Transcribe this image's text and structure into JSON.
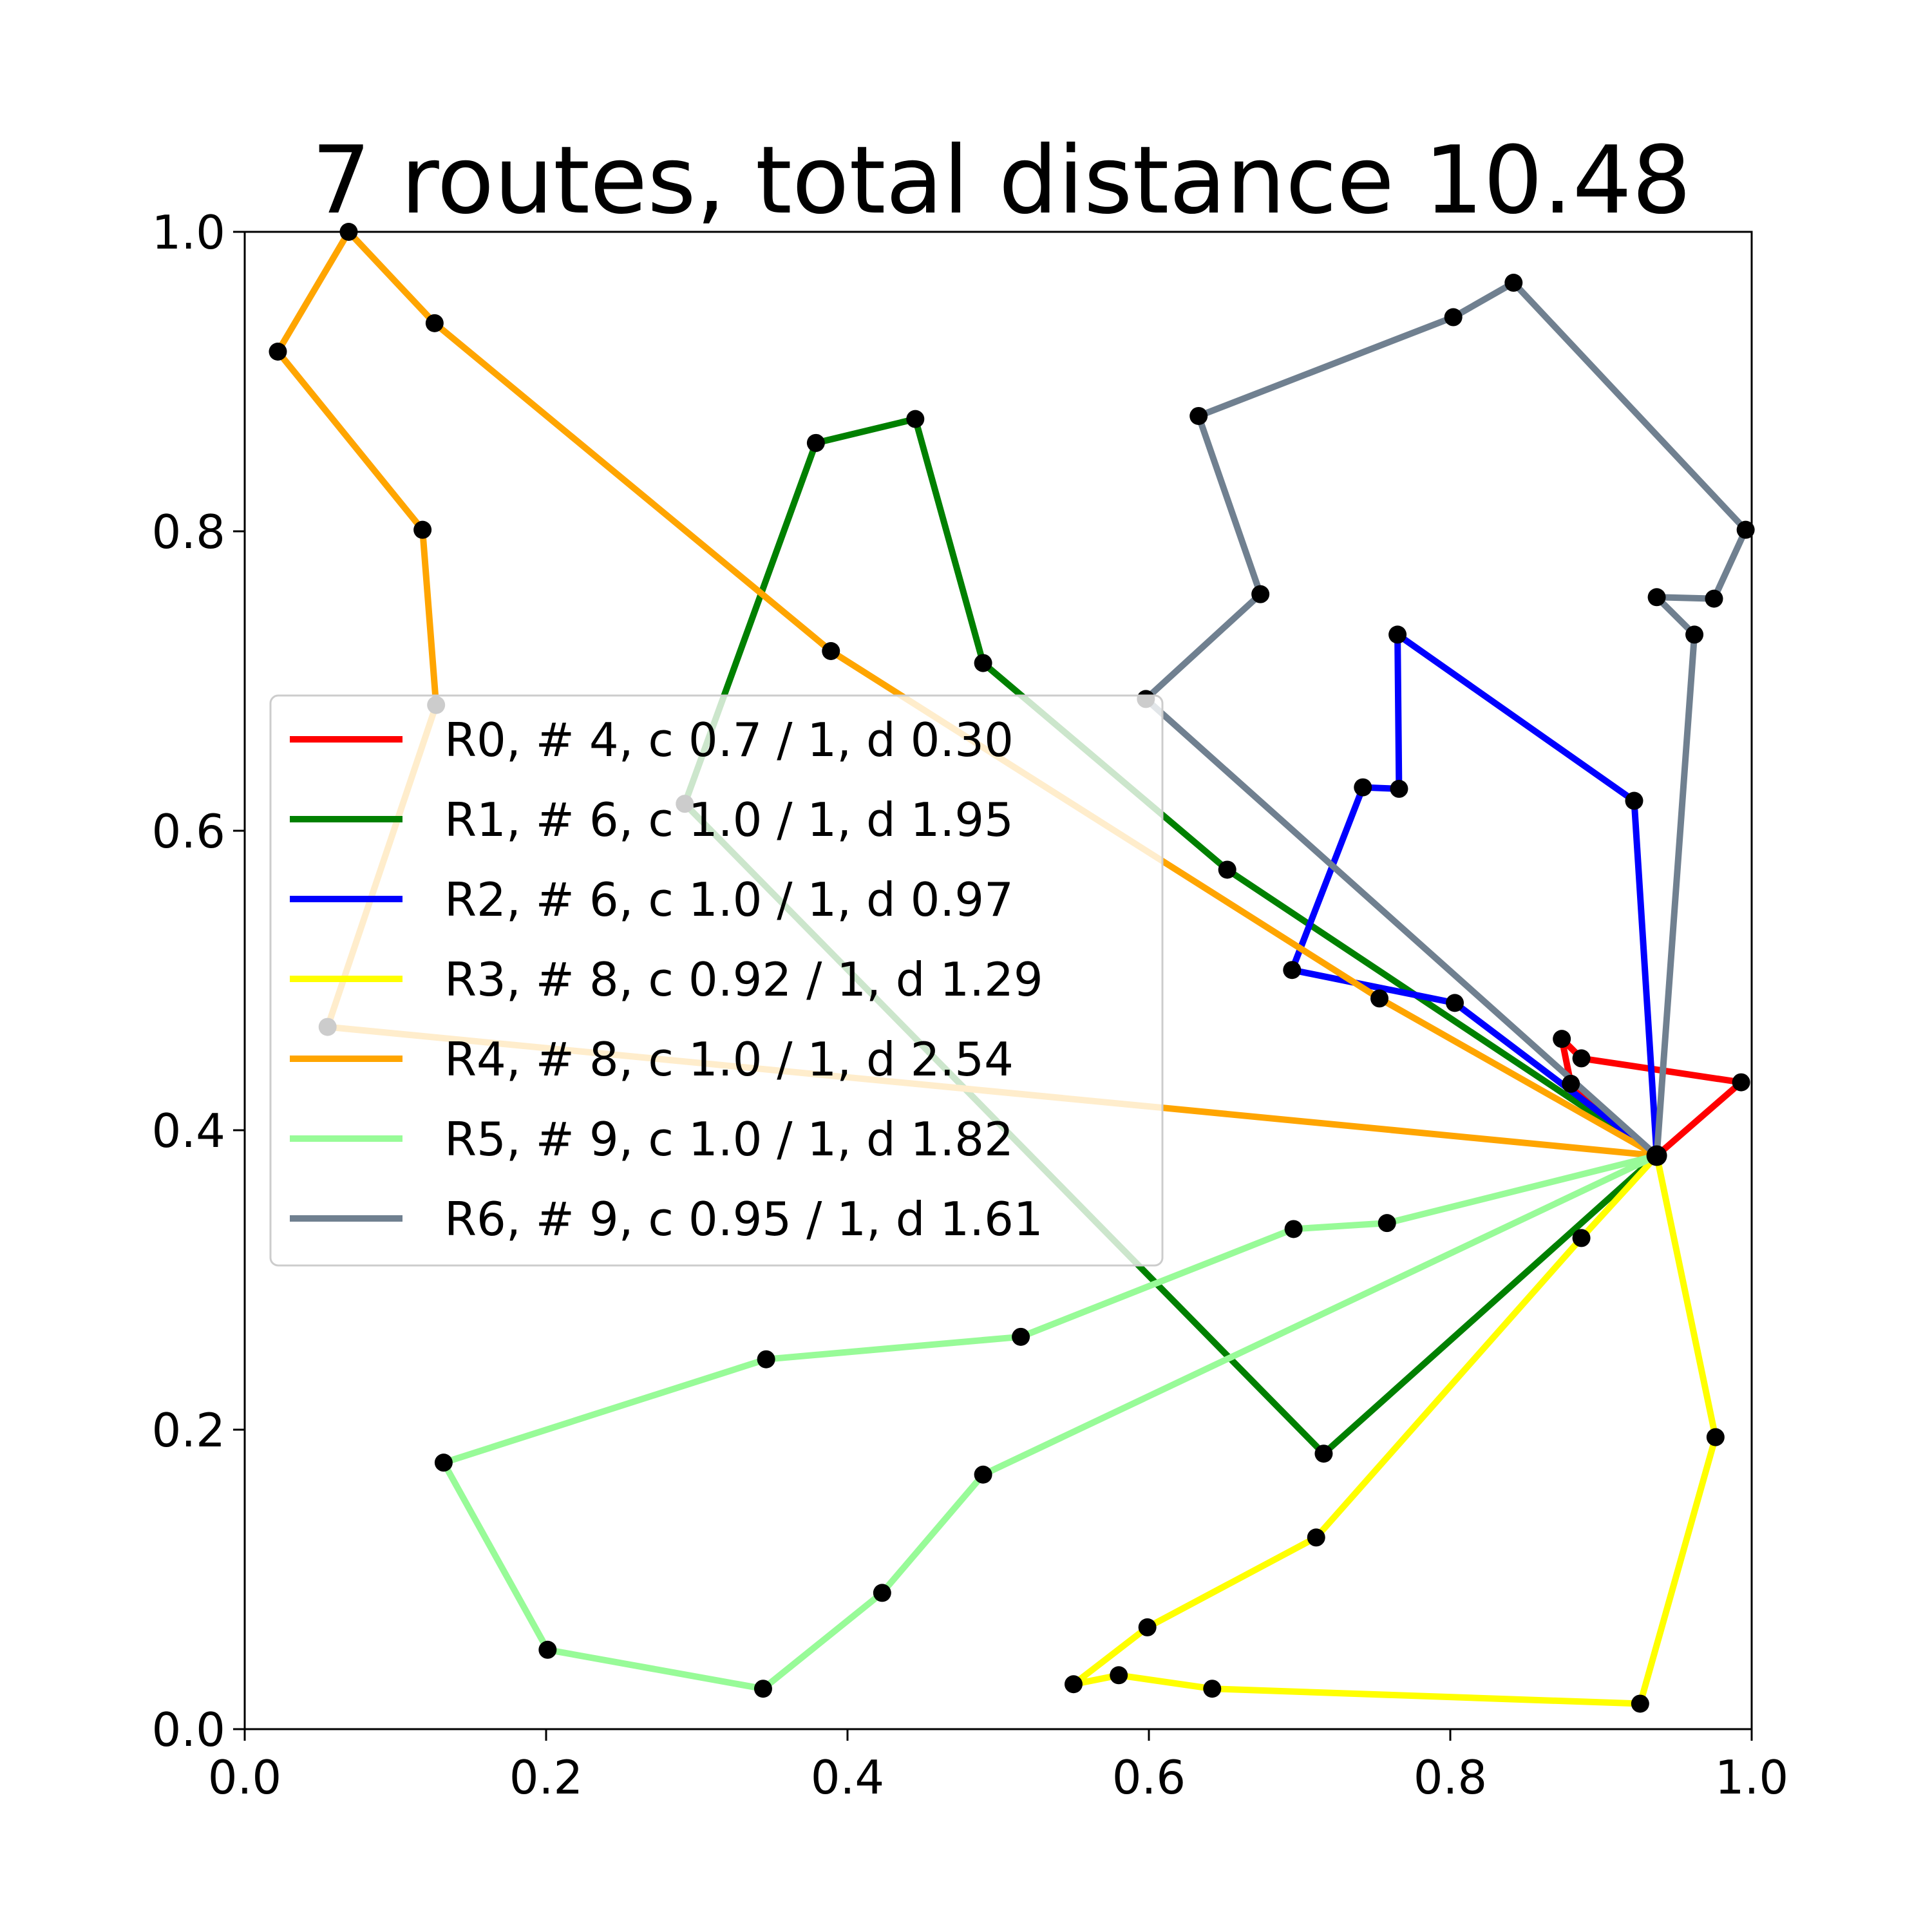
{
  "chart_data": {
    "type": "line",
    "title": "7 routes, total distance 10.48",
    "xlabel": "",
    "ylabel": "",
    "xlim": [
      0,
      1
    ],
    "ylim": [
      0,
      1
    ],
    "xticks": [
      "0.0",
      "0.2",
      "0.4",
      "0.6",
      "0.8",
      "1.0"
    ],
    "yticks": [
      "0.0",
      "0.2",
      "0.4",
      "0.6",
      "0.8",
      "1.0"
    ],
    "grid": false,
    "legend_position": "center-left",
    "depot": [
      0.937,
      0.383
    ],
    "series": [
      {
        "name": "R0, # 4, c 0.7 / 1, d 0.30",
        "color": "#ff0000",
        "points": [
          [
            0.937,
            0.383
          ],
          [
            0.993,
            0.432
          ],
          [
            0.887,
            0.448
          ],
          [
            0.874,
            0.461
          ],
          [
            0.88,
            0.431
          ],
          [
            0.937,
            0.383
          ]
        ]
      },
      {
        "name": "R1, # 6, c 1.0 / 1, d 1.95",
        "color": "#008000",
        "points": [
          [
            0.937,
            0.383
          ],
          [
            0.652,
            0.574
          ],
          [
            0.49,
            0.712
          ],
          [
            0.445,
            0.875
          ],
          [
            0.379,
            0.859
          ],
          [
            0.292,
            0.618
          ],
          [
            0.716,
            0.184
          ],
          [
            0.937,
            0.383
          ]
        ]
      },
      {
        "name": "R2, # 6, c 1.0 / 1, d 0.97",
        "color": "#0000ff",
        "points": [
          [
            0.937,
            0.383
          ],
          [
            0.922,
            0.62
          ],
          [
            0.765,
            0.731
          ],
          [
            0.766,
            0.628
          ],
          [
            0.742,
            0.629
          ],
          [
            0.695,
            0.507
          ],
          [
            0.803,
            0.485
          ],
          [
            0.937,
            0.383
          ]
        ]
      },
      {
        "name": "R3, # 8, c 0.92 / 1, d 1.29",
        "color": "#ffff00",
        "points": [
          [
            0.937,
            0.383
          ],
          [
            0.887,
            0.328
          ],
          [
            0.711,
            0.128
          ],
          [
            0.599,
            0.068
          ],
          [
            0.55,
            0.03
          ],
          [
            0.58,
            0.036
          ],
          [
            0.642,
            0.027
          ],
          [
            0.926,
            0.017
          ],
          [
            0.976,
            0.195
          ],
          [
            0.937,
            0.383
          ]
        ]
      },
      {
        "name": "R4, # 8, c 1.0 / 1, d 2.54",
        "color": "#ffa500",
        "points": [
          [
            0.937,
            0.383
          ],
          [
            0.753,
            0.488
          ],
          [
            0.389,
            0.72
          ],
          [
            0.126,
            0.939
          ],
          [
            0.069,
            1.0
          ],
          [
            0.022,
            0.92
          ],
          [
            0.118,
            0.801
          ],
          [
            0.127,
            0.684
          ],
          [
            0.055,
            0.469
          ],
          [
            0.937,
            0.383
          ]
        ]
      },
      {
        "name": "R5, # 9, c 1.0 / 1, d 1.82",
        "color": "#98fb98",
        "points": [
          [
            0.937,
            0.383
          ],
          [
            0.758,
            0.338
          ],
          [
            0.696,
            0.334
          ],
          [
            0.515,
            0.262
          ],
          [
            0.346,
            0.247
          ],
          [
            0.132,
            0.178
          ],
          [
            0.201,
            0.053
          ],
          [
            0.344,
            0.027
          ],
          [
            0.423,
            0.091
          ],
          [
            0.49,
            0.17
          ],
          [
            0.937,
            0.383
          ]
        ]
      },
      {
        "name": "R6, # 9, c 0.95 / 1, d 1.61",
        "color": "#708090",
        "points": [
          [
            0.937,
            0.383
          ],
          [
            0.962,
            0.731
          ],
          [
            0.937,
            0.756
          ],
          [
            0.975,
            0.755
          ],
          [
            0.996,
            0.801
          ],
          [
            0.842,
            0.966
          ],
          [
            0.802,
            0.943
          ],
          [
            0.633,
            0.877
          ],
          [
            0.674,
            0.758
          ],
          [
            0.598,
            0.688
          ],
          [
            0.937,
            0.383
          ]
        ]
      }
    ]
  }
}
